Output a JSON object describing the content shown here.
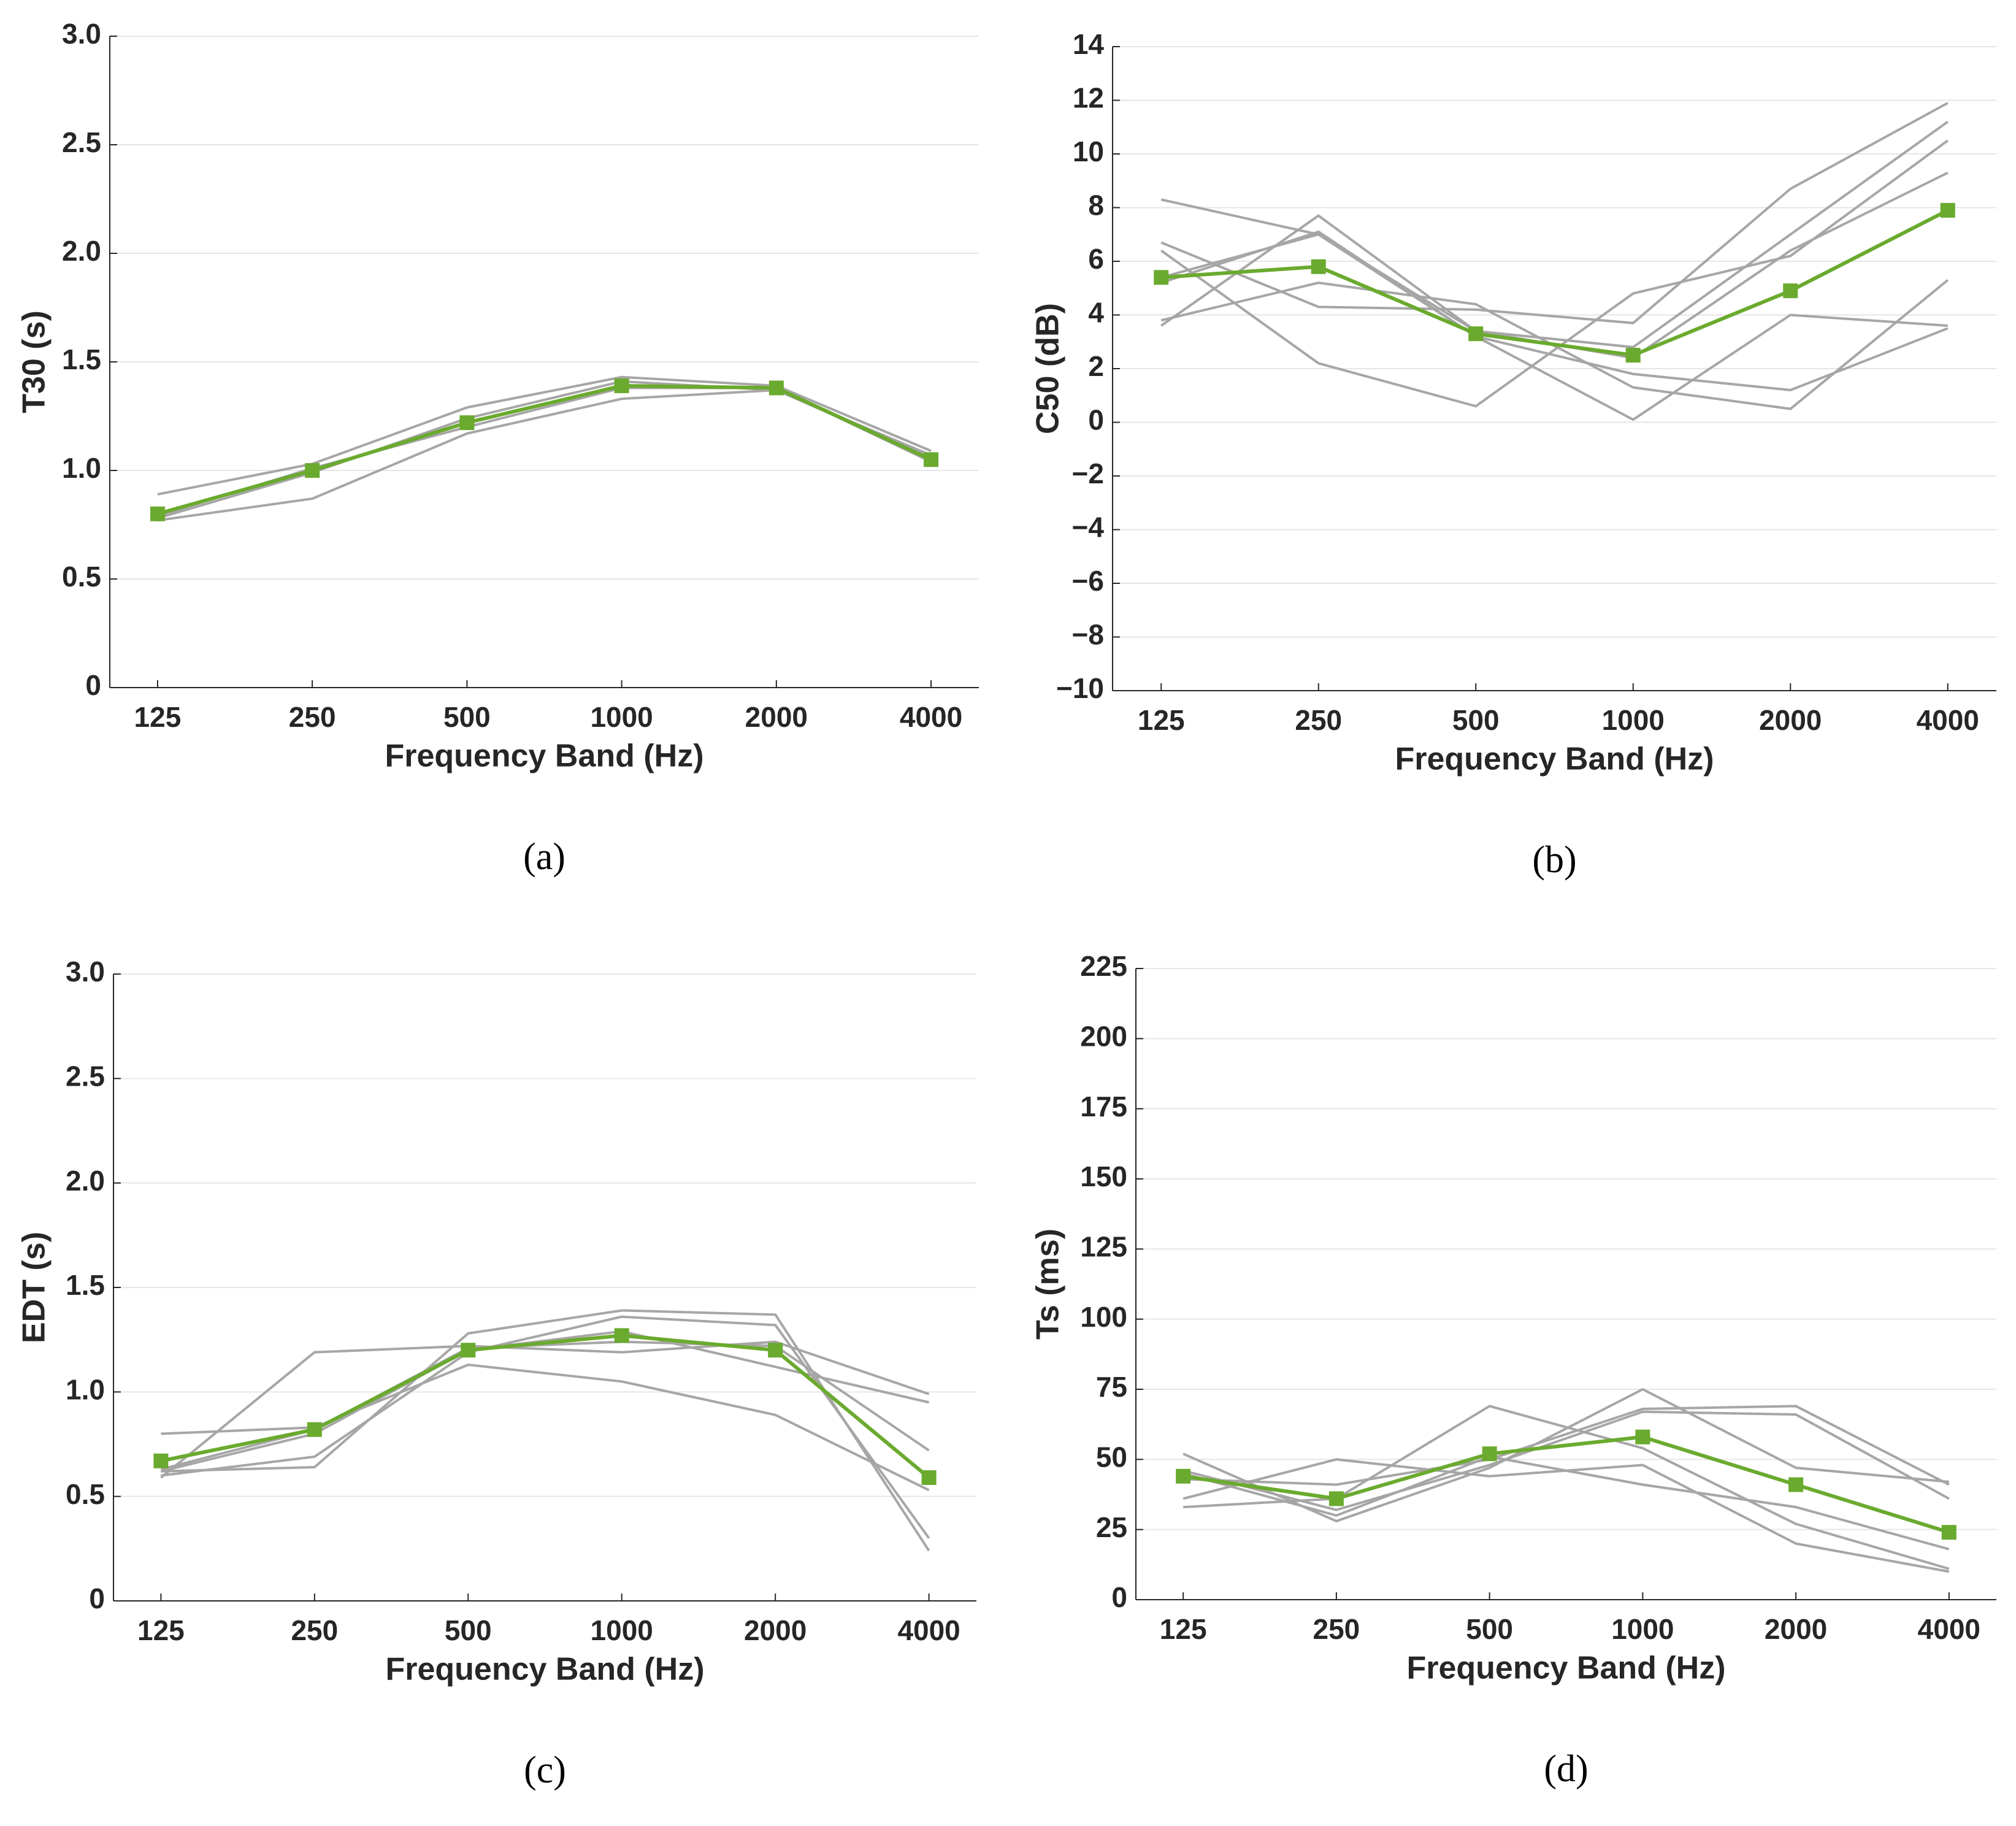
{
  "chart_data": [
    {
      "type": "line",
      "y_label": "T30 (s)",
      "x_label": "Frequency Band (Hz)",
      "caption": "(a)",
      "categories": [
        "125",
        "250",
        "500",
        "1000",
        "2000",
        "4000"
      ],
      "ylim": [
        0,
        3
      ],
      "yticks": [
        0,
        0.5,
        {
          "value": 1,
          "label": "1.0"
        },
        1.5,
        {
          "value": 2,
          "label": "2.0"
        },
        2.5,
        {
          "value": 3,
          "label": "3.0"
        }
      ],
      "grid": true,
      "series": [
        {
          "color": "#a6a6a6",
          "values": [
            0.89,
            1.03,
            1.29,
            1.43,
            1.39,
            1.09
          ]
        },
        {
          "color": "#a6a6a6",
          "values": [
            0.77,
            0.87,
            1.17,
            1.33,
            1.37,
            1.06
          ]
        },
        {
          "color": "#a6a6a6",
          "values": [
            0.79,
            1.01,
            1.2,
            1.38,
            1.38,
            1.04
          ]
        },
        {
          "color": "#a6a6a6",
          "values": [
            0.78,
            0.99,
            1.24,
            1.41,
            1.37,
            1.07
          ]
        },
        {
          "color": "#6aaa2e",
          "marker": "square",
          "values": [
            0.8,
            1.0,
            1.22,
            1.39,
            1.38,
            1.05
          ]
        }
      ]
    },
    {
      "type": "line",
      "y_label": "C50 (dB)",
      "x_label": "Frequency Band (Hz)",
      "caption": "(b)",
      "categories": [
        "125",
        "250",
        "500",
        "1000",
        "2000",
        "4000"
      ],
      "ylim": [
        -10,
        14
      ],
      "yticks": [
        {
          "value": -10,
          "label": "−10"
        },
        {
          "value": -8,
          "label": "−8"
        },
        {
          "value": -6,
          "label": "−6"
        },
        {
          "value": -4,
          "label": "−4"
        },
        {
          "value": -2,
          "label": "−2"
        },
        0,
        2,
        4,
        6,
        8,
        10,
        12,
        14
      ],
      "grid": true,
      "series": [
        {
          "color": "#a6a6a6",
          "values": [
            8.3,
            7.0,
            3.2,
            0.1,
            4.0,
            3.6
          ]
        },
        {
          "color": "#a6a6a6",
          "values": [
            6.7,
            4.3,
            4.2,
            3.7,
            8.7,
            11.9
          ]
        },
        {
          "color": "#a6a6a6",
          "values": [
            3.8,
            5.2,
            4.4,
            1.3,
            0.5,
            5.3
          ]
        },
        {
          "color": "#a6a6a6",
          "values": [
            3.6,
            7.7,
            3.4,
            2.8,
            7.0,
            11.2
          ]
        },
        {
          "color": "#a6a6a6",
          "values": [
            6.4,
            2.2,
            0.6,
            4.8,
            6.2,
            10.5
          ]
        },
        {
          "color": "#a6a6a6",
          "values": [
            5.2,
            7.1,
            3.2,
            1.8,
            1.2,
            3.5
          ]
        },
        {
          "color": "#a6a6a6",
          "values": [
            5.4,
            7.0,
            3.4,
            2.4,
            6.4,
            9.3
          ]
        },
        {
          "color": "#6aaa2e",
          "marker": "square",
          "values": [
            5.4,
            5.8,
            3.3,
            2.5,
            4.9,
            7.9
          ]
        }
      ]
    },
    {
      "type": "line",
      "y_label": "EDT (s)",
      "x_label": "Frequency Band (Hz)",
      "caption": "(c)",
      "categories": [
        "125",
        "250",
        "500",
        "1000",
        "2000",
        "4000"
      ],
      "ylim": [
        0,
        3
      ],
      "yticks": [
        0,
        0.5,
        {
          "value": 1,
          "label": "1.0"
        },
        1.5,
        {
          "value": 2,
          "label": "2.0"
        },
        2.5,
        {
          "value": 3,
          "label": "3.0"
        }
      ],
      "grid": true,
      "series": [
        {
          "color": "#a6a6a6",
          "values": [
            0.8,
            0.83,
            1.13,
            1.05,
            0.89,
            0.53
          ]
        },
        {
          "color": "#a6a6a6",
          "values": [
            0.59,
            1.19,
            1.22,
            1.19,
            1.24,
            0.99
          ]
        },
        {
          "color": "#a6a6a6",
          "values": [
            0.62,
            0.64,
            1.28,
            1.39,
            1.37,
            0.24
          ]
        },
        {
          "color": "#a6a6a6",
          "values": [
            0.6,
            0.69,
            1.19,
            1.36,
            1.32,
            0.3
          ]
        },
        {
          "color": "#a6a6a6",
          "values": [
            0.62,
            0.8,
            1.2,
            1.29,
            1.12,
            0.95
          ]
        },
        {
          "color": "#a6a6a6",
          "values": [
            0.63,
            0.82,
            1.21,
            1.24,
            1.22,
            0.72
          ]
        },
        {
          "color": "#6aaa2e",
          "marker": "square",
          "values": [
            0.67,
            0.82,
            1.2,
            1.27,
            1.2,
            0.59
          ]
        }
      ]
    },
    {
      "type": "line",
      "y_label": "Ts (ms)",
      "x_label": "Frequency Band (Hz)",
      "caption": "(d)",
      "categories": [
        "125",
        "250",
        "500",
        "1000",
        "2000",
        "4000"
      ],
      "ylim": [
        0,
        225
      ],
      "yticks": [
        0,
        25,
        50,
        75,
        100,
        125,
        150,
        175,
        200,
        225
      ],
      "grid": true,
      "series": [
        {
          "color": "#a6a6a6",
          "values": [
            52,
            28,
            47,
            75,
            47,
            42
          ]
        },
        {
          "color": "#a6a6a6",
          "values": [
            33,
            36,
            69,
            54,
            27,
            11
          ]
        },
        {
          "color": "#a6a6a6",
          "values": [
            43,
            41,
            50,
            68,
            69,
            41
          ]
        },
        {
          "color": "#a6a6a6",
          "values": [
            36,
            50,
            44,
            48,
            20,
            10
          ]
        },
        {
          "color": "#a6a6a6",
          "values": [
            46,
            32,
            48,
            67,
            66,
            36
          ]
        },
        {
          "color": "#a6a6a6",
          "values": [
            45,
            30,
            51,
            41,
            33,
            18
          ]
        },
        {
          "color": "#6aaa2e",
          "marker": "square",
          "values": [
            44,
            36,
            52,
            58,
            41,
            24
          ]
        }
      ]
    }
  ]
}
